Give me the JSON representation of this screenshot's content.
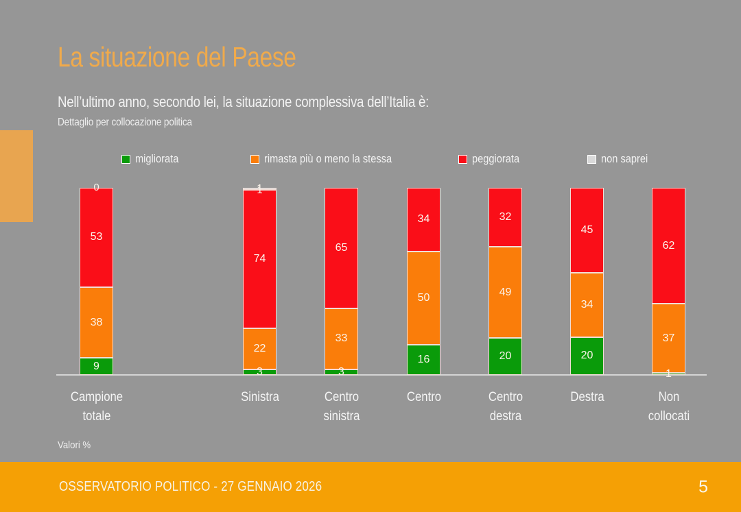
{
  "slide": {
    "title": "La situazione del Paese",
    "subtitle": "Nell’ultimo anno, secondo lei, la situazione complessiva dell’Italia è:",
    "subtitle_detail": "Dettaglio per collocazione politica",
    "values_note": "Valori %",
    "footer_title": "OSSERVATORIO POLITICO - 27 GENNAIO 2026",
    "page_number": "5"
  },
  "colors": {
    "background": "#969696",
    "accent_tab": "#E8A550",
    "title_text": "#F0AA4B",
    "footer_bar": "#F5A005",
    "migliorata_green": "#0A9B0A",
    "rimasta_orange": "#FA7D0A",
    "peggiorata_red": "#FA0E18",
    "non_saprei_gray": "#D9D9D9"
  },
  "chart_data": {
    "type": "bar",
    "variant": "stacked-100-percent-column",
    "unit": "percent",
    "legend_position": "top",
    "ylim": [
      0,
      100
    ],
    "categories": [
      [
        "Campione",
        "totale"
      ],
      [
        "Sinistra"
      ],
      [
        "Centro",
        "sinistra"
      ],
      [
        "Centro"
      ],
      [
        "Centro",
        "destra"
      ],
      [
        "Destra"
      ],
      [
        "Non",
        "collocati"
      ]
    ],
    "series": [
      {
        "name": "migliorata",
        "color": "#0A9B0A",
        "values": [
          9,
          3,
          3,
          16,
          20,
          20,
          1
        ]
      },
      {
        "name": "rimasta più o meno la stessa",
        "color": "#FA7D0A",
        "values": [
          38,
          22,
          33,
          50,
          49,
          34,
          37
        ]
      },
      {
        "name": "peggiorata",
        "color": "#FA0E18",
        "values": [
          53,
          74,
          65,
          34,
          32,
          45,
          62
        ]
      },
      {
        "name": "non saprei",
        "color": "#D9D9D9",
        "values": [
          0,
          1,
          null,
          null,
          null,
          null,
          null
        ]
      }
    ]
  }
}
